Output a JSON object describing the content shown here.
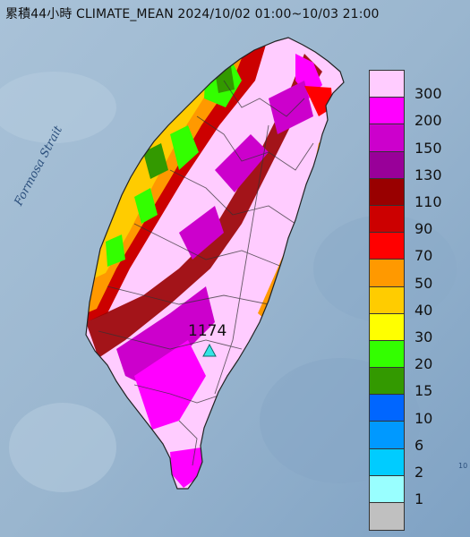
{
  "title": "累積44小時 CLIMATE_MEAN 2024/10/02 01:00~10/03 21:00",
  "strait_label": "Formosa Strait",
  "max_station": {
    "value": "1174",
    "marker": "cyan-triangle-icon"
  },
  "corner_mark": "10",
  "legend": [
    {
      "label": "300",
      "color": "#ffccff"
    },
    {
      "label": "200",
      "color": "#ff00ff"
    },
    {
      "label": "150",
      "color": "#cc00cc"
    },
    {
      "label": "130",
      "color": "#990099"
    },
    {
      "label": "110",
      "color": "#990000"
    },
    {
      "label": "90",
      "color": "#cc0000"
    },
    {
      "label": "70",
      "color": "#ff0000"
    },
    {
      "label": "50",
      "color": "#ff9900"
    },
    {
      "label": "40",
      "color": "#ffcc00"
    },
    {
      "label": "30",
      "color": "#ffff00"
    },
    {
      "label": "20",
      "color": "#33ff00"
    },
    {
      "label": "15",
      "color": "#339900"
    },
    {
      "label": "10",
      "color": "#0066ff"
    },
    {
      "label": "6",
      "color": "#0099ff"
    },
    {
      "label": "2",
      "color": "#00ccff"
    },
    {
      "label": "1",
      "color": "#99ffff"
    },
    {
      "label": "",
      "color": "#c0c0c0"
    }
  ]
}
